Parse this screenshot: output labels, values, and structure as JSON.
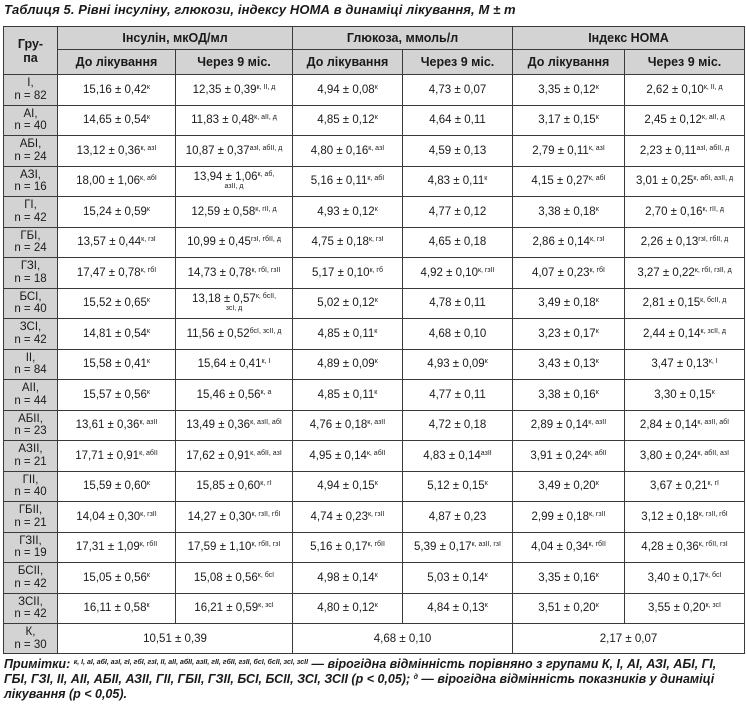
{
  "caption": "Таблиця 5. Рівні інсуліну, глюкози, індексу НОМА в динаміці лікування, M ± m",
  "header": {
    "group": "Гру-\nпа",
    "insulin": "Інсулін, мкОД/мл",
    "glucose": "Глюкоза, ммоль/л",
    "homa": "Індекс НОМА",
    "before": "До лікування",
    "after": "Через 9 міс."
  },
  "rows": [
    {
      "g": "I,\nn = 82",
      "c": [
        [
          "15,16 ± 0,42",
          "к"
        ],
        [
          "12,35 ± 0,39",
          "к, II, д"
        ],
        [
          "4,94 ± 0,08",
          "к"
        ],
        [
          "4,73 ± 0,07",
          ""
        ],
        [
          "3,35 ± 0,12",
          "к"
        ],
        [
          "2,62 ± 0,10",
          "к, II, д"
        ]
      ]
    },
    {
      "g": "AI,\nn = 40",
      "c": [
        [
          "14,65 ± 0,54",
          "к"
        ],
        [
          "11,83 ± 0,48",
          "к, aII, д"
        ],
        [
          "4,85 ± 0,12",
          "к"
        ],
        [
          "4,64 ± 0,11",
          ""
        ],
        [
          "3,17 ± 0,15",
          "к"
        ],
        [
          "2,45 ± 0,12",
          "к, aII, д"
        ]
      ]
    },
    {
      "g": "AБI,\nn = 24",
      "c": [
        [
          "13,12 ± 0,36",
          "к, aзI"
        ],
        [
          "10,87 ± 0,37",
          "aзI, aбII, д"
        ],
        [
          "4,80 ± 0,16",
          "к, aзI"
        ],
        [
          "4,59 ± 0,13",
          ""
        ],
        [
          "2,79 ± 0,11",
          "к, aзI"
        ],
        [
          "2,23 ± 0,11",
          "aзI, aбII, д"
        ]
      ]
    },
    {
      "g": "AЗI,\nn = 16",
      "c": [
        [
          "18,00 ± 1,06",
          "к, aбI"
        ],
        [
          "13,94 ± 1,06",
          "к, aб,",
          "aзII, д"
        ],
        [
          "5,16 ± 0,11",
          "к, aбI"
        ],
        [
          "4,83 ± 0,11",
          "к"
        ],
        [
          "4,15 ± 0,27",
          "к, aбI"
        ],
        [
          "3,01 ± 0,25",
          "к, aбI, aзII, д"
        ]
      ]
    },
    {
      "g": "ГI,\nn = 42",
      "c": [
        [
          "15,24 ± 0,59",
          "к"
        ],
        [
          "12,59 ± 0,58",
          "к, гII, д"
        ],
        [
          "4,93 ± 0,12",
          "к"
        ],
        [
          "4,77 ± 0,12",
          ""
        ],
        [
          "3,38 ± 0,18",
          "к"
        ],
        [
          "2,70 ± 0,16",
          "к, гII, д"
        ]
      ]
    },
    {
      "g": "ГБI,\nn = 24",
      "c": [
        [
          "13,57 ± 0,44",
          "к, гзI"
        ],
        [
          "10,99 ± 0,45",
          "гзI, гбII, д"
        ],
        [
          "4,75 ± 0,18",
          "к, гзI"
        ],
        [
          "4,65 ± 0,18",
          ""
        ],
        [
          "2,86 ± 0,14",
          "к, гзI"
        ],
        [
          "2,26 ± 0,13",
          "гзI, гбII, д"
        ]
      ]
    },
    {
      "g": "ГЗI,\nn = 18",
      "c": [
        [
          "17,47 ± 0,78",
          "к, гбI"
        ],
        [
          "14,73 ± 0,78",
          "к, гбI, гзII"
        ],
        [
          "5,17 ± 0,10",
          "к, гб"
        ],
        [
          "4,92 ± 0,10",
          "к, гзII"
        ],
        [
          "4,07 ± 0,23",
          "к, гбI"
        ],
        [
          "3,27 ± 0,22",
          "к, гбI, гзII, д"
        ]
      ]
    },
    {
      "g": "БСI,\nn = 40",
      "c": [
        [
          "15,52 ± 0,65",
          "к"
        ],
        [
          "13,18 ± 0,57",
          "к, бсII,",
          "зсI, д"
        ],
        [
          "5,02 ± 0,12",
          "к"
        ],
        [
          "4,78 ± 0,11",
          ""
        ],
        [
          "3,49 ± 0,18",
          "к"
        ],
        [
          "2,81 ± 0,15",
          "к, бсII, д"
        ]
      ]
    },
    {
      "g": "ЗСI,\nn = 42",
      "c": [
        [
          "14,81 ± 0,54",
          "к"
        ],
        [
          "11,56 ± 0,52",
          "бсI, зсII, д"
        ],
        [
          "4,85 ± 0,11",
          "к"
        ],
        [
          "4,68 ± 0,10",
          ""
        ],
        [
          "3,23 ± 0,17",
          "к"
        ],
        [
          "2,44 ± 0,14",
          "к, зсII, д"
        ]
      ]
    },
    {
      "g": "II,\nn = 84",
      "c": [
        [
          "15,58 ± 0,41",
          "к"
        ],
        [
          "15,64 ± 0,41",
          "к, I"
        ],
        [
          "4,89 ± 0,09",
          "к"
        ],
        [
          "4,93 ± 0,09",
          "к"
        ],
        [
          "3,43 ± 0,13",
          "к"
        ],
        [
          "3,47 ± 0,13",
          "к, I"
        ]
      ]
    },
    {
      "g": "AII,\nn = 44",
      "c": [
        [
          "15,57 ± 0,56",
          "к"
        ],
        [
          "15,46 ± 0,56",
          "к, a"
        ],
        [
          "4,85 ± 0,11",
          "к"
        ],
        [
          "4,77 ± 0,11",
          ""
        ],
        [
          "3,38 ± 0,16",
          "к"
        ],
        [
          "3,30 ± 0,15",
          "к"
        ]
      ]
    },
    {
      "g": "AБII,\nn = 23",
      "c": [
        [
          "13,61 ± 0,36",
          "к, aзII"
        ],
        [
          "13,49 ± 0,36",
          "к, aзII, aбI"
        ],
        [
          "4,76 ± 0,18",
          "к, aзII"
        ],
        [
          "4,72 ± 0,18",
          ""
        ],
        [
          "2,89 ± 0,14",
          "к, aзII"
        ],
        [
          "2,84 ± 0,14",
          "к, aзII, aбI"
        ]
      ]
    },
    {
      "g": "AЗII,\nn = 21",
      "c": [
        [
          "17,71 ± 0,91",
          "к, aбII"
        ],
        [
          "17,62 ± 0,91",
          "к, aбII, aзI"
        ],
        [
          "4,95 ± 0,14",
          "к, aбII"
        ],
        [
          "4,83 ± 0,14",
          "aзII"
        ],
        [
          "3,91 ± 0,24",
          "к, aбII"
        ],
        [
          "3,80 ± 0,24",
          "к, aбII, aзI"
        ]
      ]
    },
    {
      "g": "ГII,\nn = 40",
      "c": [
        [
          "15,59 ± 0,60",
          "к"
        ],
        [
          "15,85 ± 0,60",
          "к, гI"
        ],
        [
          "4,94 ± 0,15",
          "к"
        ],
        [
          "5,12 ± 0,15",
          "к"
        ],
        [
          "3,49 ± 0,20",
          "к"
        ],
        [
          "3,67 ± 0,21",
          "к, гI"
        ]
      ]
    },
    {
      "g": "ГБII,\nn = 21",
      "c": [
        [
          "14,04 ± 0,30",
          "к, гзII"
        ],
        [
          "14,27 ± 0,30",
          "к, гзII, гбI"
        ],
        [
          "4,74 ± 0,23",
          "к, гзII"
        ],
        [
          "4,87 ± 0,23",
          ""
        ],
        [
          "2,99 ± 0,18",
          "к, гзII"
        ],
        [
          "3,12 ± 0,18",
          "к, гзII, гбI"
        ]
      ]
    },
    {
      "g": "ГЗII,\nn = 19",
      "c": [
        [
          "17,31 ± 1,09",
          "к, гбII"
        ],
        [
          "17,59 ± 1,10",
          "к, гбII, гзI"
        ],
        [
          "5,16 ± 0,17",
          "к, гбII"
        ],
        [
          "5,39 ± 0,17",
          "к, aзII, гзI"
        ],
        [
          "4,04 ± 0,34",
          "к, гбII"
        ],
        [
          "4,28 ± 0,36",
          "к, гбII, гзI"
        ]
      ]
    },
    {
      "g": "БСII,\nn = 42",
      "c": [
        [
          "15,05 ± 0,56",
          "к"
        ],
        [
          "15,08 ± 0,56",
          "к, бсI"
        ],
        [
          "4,98 ± 0,14",
          "к"
        ],
        [
          "5,03 ± 0,14",
          "к"
        ],
        [
          "3,35 ± 0,16",
          "к"
        ],
        [
          "3,40 ± 0,17",
          "к, бсI"
        ]
      ]
    },
    {
      "g": "ЗСII,\nn = 42",
      "c": [
        [
          "16,11 ± 0,58",
          "к"
        ],
        [
          "16,21 ± 0,59",
          "к, зсI"
        ],
        [
          "4,80 ± 0,12",
          "к"
        ],
        [
          "4,84 ± 0,13",
          "к"
        ],
        [
          "3,51 ± 0,20",
          "к"
        ],
        [
          "3,55 ± 0,20",
          "к, зсI"
        ]
      ]
    }
  ],
  "control": {
    "g": "К,\nn = 30",
    "insulin": "10,51 ± 0,39",
    "glucose": "4,68 ± 0,10",
    "homa": "2,17 ± 0,07"
  },
  "notes": {
    "label": "Примітки: ",
    "sup1": "к, I, aI, aбI, aзI, гI, гбI, гзI, II, aII, aбII, aзII, гII, гбII, гзII, бсI, бсII, зсI, зсII",
    "text1": " — вірогідна відмінність порівняно з групами К, І, АІ, АЗІ, АБІ, ГІ, ГБІ, ГЗІ, ІІ, АІІ, АБІІ, АЗІІ, ГІІ, ГБІІ, ГЗІІ, БСІ, БСІІ, ЗСІ, ЗСІІ (р < 0,05); ",
    "sup2": "д",
    "text2": " — вірогідна відмінність показників у динаміці лікування (р < 0,05)."
  }
}
